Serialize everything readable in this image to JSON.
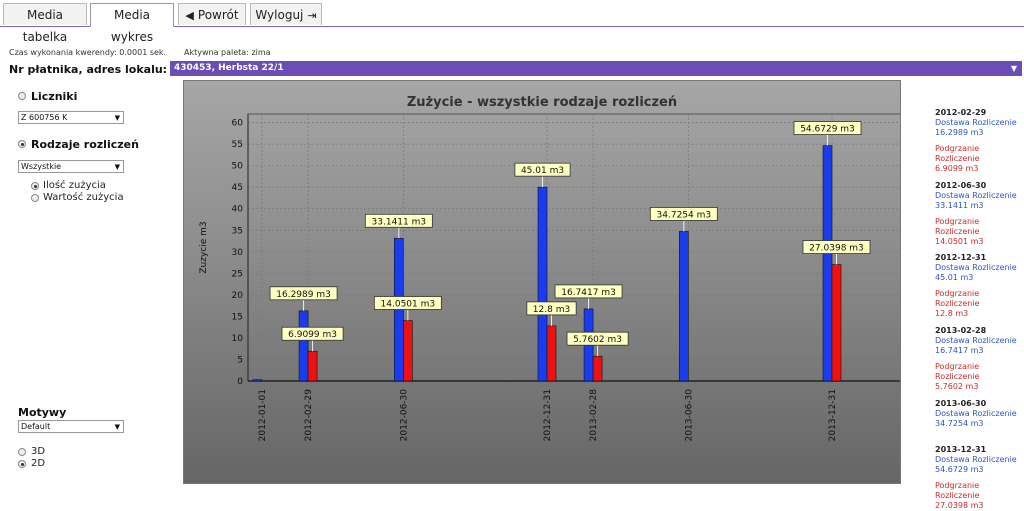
{
  "tabs": [
    {
      "label": "Media tabelka"
    },
    {
      "label": "Media wykres"
    },
    {
      "label": "Powrót"
    },
    {
      "label": "Wyloguj"
    }
  ],
  "query_time": "Czas wykonania kwerendy: 0.0001 sek.",
  "palette": "Aktywna paleta: zima",
  "address": {
    "label": "Nr płatnika, adres lokalu:",
    "value": "430453, Herbsta 22/1"
  },
  "sidebar": {
    "meters_label": "Liczniki",
    "meter_select": "Z 600756 K",
    "types_label": "Rodzaje rozliczeń",
    "types_select": "Wszystkie",
    "mode_options": [
      "Ilość zużycia",
      "Wartość zużycia"
    ],
    "themes_label": "Motywy",
    "theme_select": "Default",
    "dim_options": [
      "3D",
      "2D"
    ]
  },
  "chart_data": {
    "type": "bar",
    "title": "Zużycie - wszystkie rodzaje rozliczeń",
    "xlabel": "",
    "ylabel": "Zuzycie m3",
    "ylim": [
      0,
      62
    ],
    "yticks": [
      0,
      5,
      10,
      15,
      20,
      25,
      30,
      35,
      40,
      45,
      50,
      55,
      60
    ],
    "grid": true,
    "legend": "right",
    "x_labels": [
      "2012-01-01",
      "2012-02-29",
      "2012-06-30",
      "2012-12-31",
      "2013-02-28",
      "2013-06-30",
      "2013-12-31"
    ],
    "x": [
      "2012-01-01",
      "2012-02-29",
      "2012-06-30",
      "2012-12-31",
      "2013-02-28",
      "2013-06-30",
      "2013-12-31"
    ],
    "series": [
      {
        "name": "Dostawa Rozliczenie",
        "color": "#1a3cf0",
        "values": [
          0.3,
          16.2989,
          33.1411,
          45.01,
          16.7417,
          34.7254,
          54.6729
        ],
        "labels": [
          "",
          "16.2989 m3",
          "33.1411 m3",
          "45.01 m3",
          "16.7417 m3",
          "34.7254 m3",
          "54.6729 m3"
        ]
      },
      {
        "name": "Podgrzanie Rozliczenie",
        "color": "#ee1111",
        "values": [
          0,
          6.9099,
          14.0501,
          12.8,
          5.7602,
          0,
          27.0398
        ],
        "labels": [
          "",
          "6.9099 m3",
          "14.0501 m3",
          "12.8 m3",
          "5.7602 m3",
          "",
          "27.0398 m3"
        ]
      }
    ],
    "legend_entries": [
      {
        "date": "2012-02-29",
        "blue": "Dostawa Rozliczenie",
        "blue_val": "16.2989 m3",
        "red": "Podgrzanie Rozliczenie",
        "red_val": "6.9099 m3"
      },
      {
        "date": "2012-06-30",
        "blue": "Dostawa Rozliczenie",
        "blue_val": "33.1411 m3",
        "red": "Podgrzanie Rozliczenie",
        "red_val": "14.0501 m3"
      },
      {
        "date": "2012-12-31",
        "blue": "Dostawa Rozliczenie",
        "blue_val": "45.01 m3",
        "red": "Podgrzanie Rozliczenie",
        "red_val": "12.8 m3"
      },
      {
        "date": "2013-02-28",
        "blue": "Dostawa Rozliczenie",
        "blue_val": "16.7417 m3",
        "red": "Podgrzanie Rozliczenie",
        "red_val": "5.7602 m3"
      },
      {
        "date": "2013-06-30",
        "blue": "Dostawa Rozliczenie",
        "blue_val": "34.7254 m3",
        "red": "",
        "red_val": ""
      },
      {
        "date": "2013-12-31",
        "blue": "Dostawa Rozliczenie",
        "blue_val": "54.6729 m3",
        "red": "Podgrzanie Rozliczenie",
        "red_val": "27.0398 m3"
      }
    ]
  }
}
